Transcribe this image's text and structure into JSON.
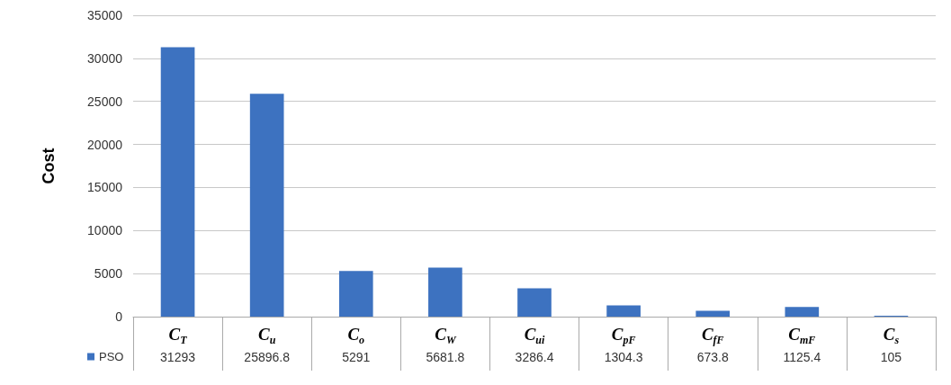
{
  "chart_data": {
    "type": "bar",
    "ylabel": "Cost",
    "categories": [
      "C$_{T}$",
      "C$_{u}$",
      "C$_{o}$",
      "C$_{W}$",
      "C$_{ui}$",
      "C$_{pF}$",
      "C$_{fF}$",
      "C$_{mF}$",
      "C$_{s}$"
    ],
    "series": [
      {
        "name": "PSO",
        "color": "#3d72c0",
        "values": [
          31293,
          25896.8,
          5291,
          5681.8,
          3286.4,
          1304.3,
          673.8,
          1125.4,
          105
        ]
      }
    ],
    "ylim": [
      0,
      35000
    ],
    "yticks": [
      0,
      5000,
      10000,
      15000,
      20000,
      25000,
      30000,
      35000
    ],
    "grid": "y",
    "legend": "bottom left",
    "data_labels": true
  }
}
